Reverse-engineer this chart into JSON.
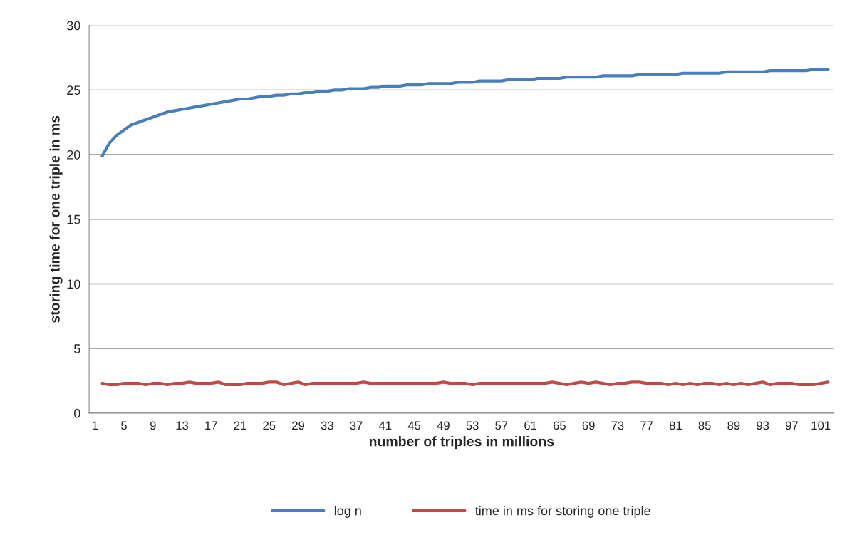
{
  "chart_data": {
    "type": "line",
    "xlabel": "number of triples in millions",
    "ylabel": "storing time for one triple in ms",
    "categories": [
      "1",
      null,
      null,
      null,
      "5",
      null,
      null,
      null,
      "9",
      null,
      null,
      null,
      "13",
      null,
      null,
      null,
      "17",
      null,
      null,
      null,
      "21",
      null,
      null,
      null,
      "25",
      null,
      null,
      null,
      "29",
      null,
      null,
      null,
      "33",
      null,
      null,
      null,
      "37",
      null,
      null,
      null,
      "41",
      null,
      null,
      null,
      "45",
      null,
      null,
      null,
      "49",
      null,
      null,
      null,
      "53",
      null,
      null,
      null,
      "57",
      null,
      null,
      null,
      "61",
      null,
      null,
      null,
      "65",
      null,
      null,
      null,
      "69",
      null,
      null,
      null,
      "73",
      null,
      null,
      null,
      "77",
      null,
      null,
      null,
      "81",
      null,
      null,
      null,
      "85",
      null,
      null,
      null,
      "89",
      null,
      null,
      null,
      "93",
      null,
      null,
      null,
      "97",
      null,
      null,
      null,
      "101",
      null
    ],
    "series": [
      {
        "name": "log n",
        "color": "#4a7ebb",
        "values": [
          null,
          19.9,
          20.9,
          21.5,
          21.9,
          22.3,
          22.5,
          22.7,
          22.9,
          23.1,
          23.3,
          23.4,
          23.5,
          23.6,
          23.7,
          23.8,
          23.9,
          24.0,
          24.1,
          24.2,
          24.3,
          24.3,
          24.4,
          24.5,
          24.5,
          24.6,
          24.6,
          24.7,
          24.7,
          24.8,
          24.8,
          24.9,
          24.9,
          25.0,
          25.0,
          25.1,
          25.1,
          25.1,
          25.2,
          25.2,
          25.3,
          25.3,
          25.3,
          25.4,
          25.4,
          25.4,
          25.5,
          25.5,
          25.5,
          25.5,
          25.6,
          25.6,
          25.6,
          25.7,
          25.7,
          25.7,
          25.7,
          25.8,
          25.8,
          25.8,
          25.8,
          25.9,
          25.9,
          25.9,
          25.9,
          26.0,
          26.0,
          26.0,
          26.0,
          26.0,
          26.1,
          26.1,
          26.1,
          26.1,
          26.1,
          26.2,
          26.2,
          26.2,
          26.2,
          26.2,
          26.2,
          26.3,
          26.3,
          26.3,
          26.3,
          26.3,
          26.3,
          26.4,
          26.4,
          26.4,
          26.4,
          26.4,
          26.4,
          26.5,
          26.5,
          26.5,
          26.5,
          26.5,
          26.5,
          26.6,
          26.6,
          26.6
        ]
      },
      {
        "name": "time in ms for storing one triple",
        "color": "#be4b48",
        "values": [
          null,
          2.3,
          2.2,
          2.2,
          2.3,
          2.3,
          2.3,
          2.2,
          2.3,
          2.3,
          2.2,
          2.3,
          2.3,
          2.4,
          2.3,
          2.3,
          2.3,
          2.4,
          2.2,
          2.2,
          2.2,
          2.3,
          2.3,
          2.3,
          2.4,
          2.4,
          2.2,
          2.3,
          2.4,
          2.2,
          2.3,
          2.3,
          2.3,
          2.3,
          2.3,
          2.3,
          2.3,
          2.4,
          2.3,
          2.3,
          2.3,
          2.3,
          2.3,
          2.3,
          2.3,
          2.3,
          2.3,
          2.3,
          2.4,
          2.3,
          2.3,
          2.3,
          2.2,
          2.3,
          2.3,
          2.3,
          2.3,
          2.3,
          2.3,
          2.3,
          2.3,
          2.3,
          2.3,
          2.4,
          2.3,
          2.2,
          2.3,
          2.4,
          2.3,
          2.4,
          2.3,
          2.2,
          2.3,
          2.3,
          2.4,
          2.4,
          2.3,
          2.3,
          2.3,
          2.2,
          2.3,
          2.2,
          2.3,
          2.2,
          2.3,
          2.3,
          2.2,
          2.3,
          2.2,
          2.3,
          2.2,
          2.3,
          2.4,
          2.2,
          2.3,
          2.3,
          2.3,
          2.2,
          2.2,
          2.2,
          2.3,
          2.4
        ]
      }
    ],
    "ylim": [
      0,
      30
    ],
    "yticks": [
      0,
      5,
      10,
      15,
      20,
      25,
      30
    ],
    "grid": "y",
    "legend": "bottom",
    "marker": "none",
    "line_style": "solid"
  }
}
